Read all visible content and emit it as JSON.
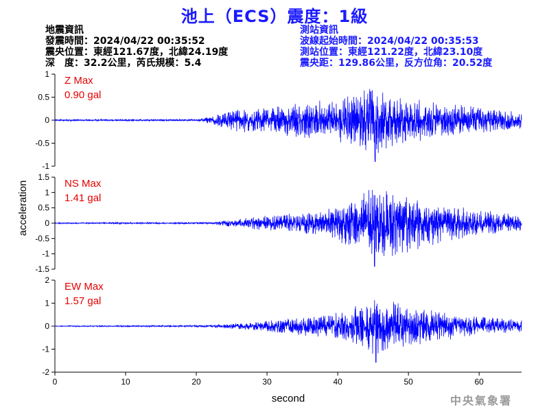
{
  "header": {
    "title": "池上（ECS）震度：1級"
  },
  "event_info": {
    "heading": "地震資訊",
    "origin_time": "發震時間：2024/04/22 00:35:52",
    "epicenter": "震央位置：東經121.67度，北緯24.19度",
    "depth_magnitude": "深　度：32.2公里，芮氏規模：5.4"
  },
  "station_info": {
    "heading": "測站資訊",
    "wave_start": "波線起始時間：2024/04/22 00:35:53",
    "location": "測站位置：東經121.22度，北緯23.10度",
    "distance_azimuth": "震央距：129.86公里，反方位角：20.52度"
  },
  "footer": {
    "agency": "中央氣象署"
  },
  "colors": {
    "trace": "#0000ff",
    "max_label": "#e60000",
    "title": "#1a1aff"
  },
  "chart_data": {
    "type": "line",
    "xlabel": "second",
    "ylabel": "acceleration",
    "xlim": [
      0,
      66
    ],
    "xticks": [
      0,
      10,
      20,
      30,
      40,
      50,
      60
    ],
    "grid": false,
    "panels": [
      {
        "component": "Z",
        "max_label": "Z Max",
        "max_value": "0.90 gal",
        "ylim": [
          -1,
          1
        ],
        "yticks": [
          -1,
          -0.5,
          0,
          0.5,
          1
        ],
        "envelope_time": [
          0,
          20,
          22,
          25,
          30,
          35,
          40,
          43,
          45,
          48,
          52,
          56,
          60,
          63,
          66
        ],
        "envelope_amp": [
          0.02,
          0.02,
          0.08,
          0.25,
          0.3,
          0.4,
          0.45,
          0.7,
          0.75,
          0.6,
          0.45,
          0.35,
          0.3,
          0.25,
          0.18
        ],
        "peak_time": 45.3,
        "peak_value": -0.9
      },
      {
        "component": "NS",
        "max_label": "NS Max",
        "max_value": "1.41 gal",
        "ylim": [
          -1.5,
          1.5
        ],
        "yticks": [
          -1.5,
          -1,
          -0.5,
          0,
          0.5,
          1,
          1.5
        ],
        "envelope_time": [
          0,
          22,
          24,
          28,
          32,
          36,
          40,
          43,
          45,
          48,
          52,
          56,
          60,
          63,
          66
        ],
        "envelope_amp": [
          0.02,
          0.03,
          0.1,
          0.2,
          0.3,
          0.4,
          0.6,
          0.9,
          1.2,
          1.1,
          0.8,
          0.6,
          0.45,
          0.35,
          0.25
        ],
        "peak_time": 45.2,
        "peak_value": -1.41
      },
      {
        "component": "EW",
        "max_label": "EW Max",
        "max_value": "1.57 gal",
        "ylim": [
          -2,
          2
        ],
        "yticks": [
          -2,
          -1,
          0,
          1,
          2
        ],
        "envelope_time": [
          0,
          21,
          24,
          28,
          32,
          36,
          40,
          42,
          45,
          48,
          52,
          56,
          60,
          63,
          66
        ],
        "envelope_amp": [
          0.02,
          0.04,
          0.1,
          0.2,
          0.3,
          0.45,
          0.6,
          0.9,
          1.3,
          1.1,
          0.8,
          0.6,
          0.45,
          0.35,
          0.3
        ],
        "peak_time": 45.4,
        "peak_value": -1.57
      }
    ]
  }
}
